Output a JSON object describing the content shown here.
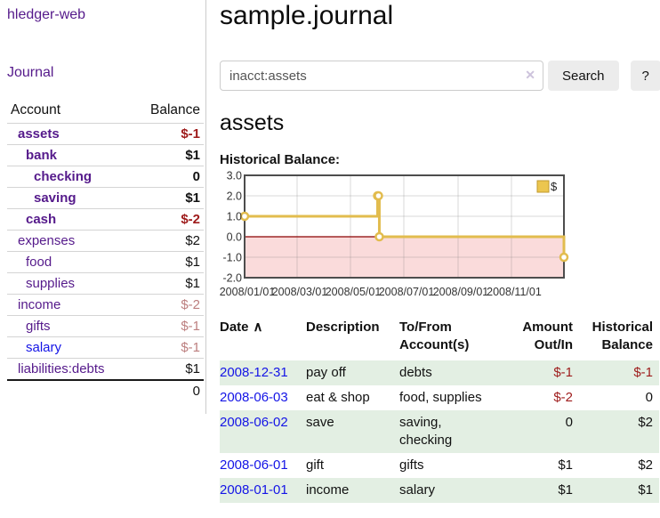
{
  "app": {
    "title": "hledger-web"
  },
  "sidebar": {
    "journal_link": "Journal",
    "table": {
      "headers": [
        "Account",
        "Balance"
      ],
      "rows": [
        {
          "account": "assets",
          "balance": "$-1",
          "depth": 1,
          "bold": true,
          "neg": "strong"
        },
        {
          "account": "bank",
          "balance": "$1",
          "depth": 2,
          "bold": true
        },
        {
          "account": "checking",
          "balance": "0",
          "depth": 3,
          "bold": true
        },
        {
          "account": "saving",
          "balance": "$1",
          "depth": 3,
          "bold": true
        },
        {
          "account": "cash",
          "balance": "$-2",
          "depth": 2,
          "bold": true,
          "neg": "strong"
        },
        {
          "account": "expenses",
          "balance": "$2",
          "depth": 1
        },
        {
          "account": "food",
          "balance": "$1",
          "depth": 2
        },
        {
          "account": "supplies",
          "balance": "$1",
          "depth": 2
        },
        {
          "account": "income",
          "balance": "$-2",
          "depth": 1,
          "neg": "soft"
        },
        {
          "account": "gifts",
          "balance": "$-1",
          "depth": 2,
          "neg": "soft"
        },
        {
          "account": "salary",
          "balance": "$-1",
          "depth": 2,
          "neg": "soft",
          "color": "blue"
        },
        {
          "account": "liabilities:debts",
          "balance": "$1",
          "depth": 1
        }
      ],
      "total": "0"
    }
  },
  "main": {
    "title": "sample.journal",
    "search": {
      "value": "inacct:assets",
      "clear_icon": "✕",
      "button_label": "Search",
      "help_label": "?"
    },
    "account_heading": "assets",
    "chart_label": "Historical Balance:"
  },
  "chart_data": {
    "type": "line",
    "step": true,
    "title": "Historical Balance",
    "series": [
      {
        "name": "$",
        "color": "#e2bc4e",
        "points": [
          [
            "2008-01-01",
            1
          ],
          [
            "2008-06-01",
            2
          ],
          [
            "2008-06-02",
            2
          ],
          [
            "2008-06-03",
            0
          ],
          [
            "2008-12-31",
            -1
          ]
        ]
      }
    ],
    "xlim": [
      "2008-01-01",
      "2008-12-31"
    ],
    "ylim": [
      -2,
      3
    ],
    "x_ticks": [
      "2008/01/01",
      "2008/03/01",
      "2008/05/01",
      "2008/07/01",
      "2008/09/01",
      "2008/11/01"
    ],
    "y_ticks": [
      "3.0",
      "2.0",
      "1.0",
      "0.0",
      "-1.0",
      "-2.0"
    ],
    "grid": true,
    "legend": {
      "label": "$",
      "position": "top-right",
      "swatch_fill": "#ecc64f",
      "swatch_stroke": "#c09a2e"
    },
    "negative_region_color": "#fadbdb",
    "zero_line_color": "#8b0000",
    "plot_border_color": "#4d4d4d",
    "grid_color": "rgba(120,120,120,0.28)"
  },
  "register": {
    "headers": [
      {
        "label": "Date",
        "sort_arrow": "∧"
      },
      {
        "label": "Description"
      },
      {
        "label": "To/From Account(s)"
      },
      {
        "label": "Amount Out/In"
      },
      {
        "label": "Historical Balance"
      }
    ],
    "rows": [
      {
        "date": "2008-12-31",
        "description": "pay off",
        "accounts": "debts",
        "amount": "$-1",
        "balance": "$-1"
      },
      {
        "date": "2008-06-03",
        "description": "eat & shop",
        "accounts": "food, supplies",
        "amount": "$-2",
        "balance": "0"
      },
      {
        "date": "2008-06-02",
        "description": "save",
        "accounts": "saving, checking",
        "amount": "0",
        "balance": "$2"
      },
      {
        "date": "2008-06-01",
        "description": "gift",
        "accounts": "gifts",
        "amount": "$1",
        "balance": "$2"
      },
      {
        "date": "2008-01-01",
        "description": "income",
        "accounts": "salary",
        "amount": "$1",
        "balance": "$1"
      }
    ]
  }
}
